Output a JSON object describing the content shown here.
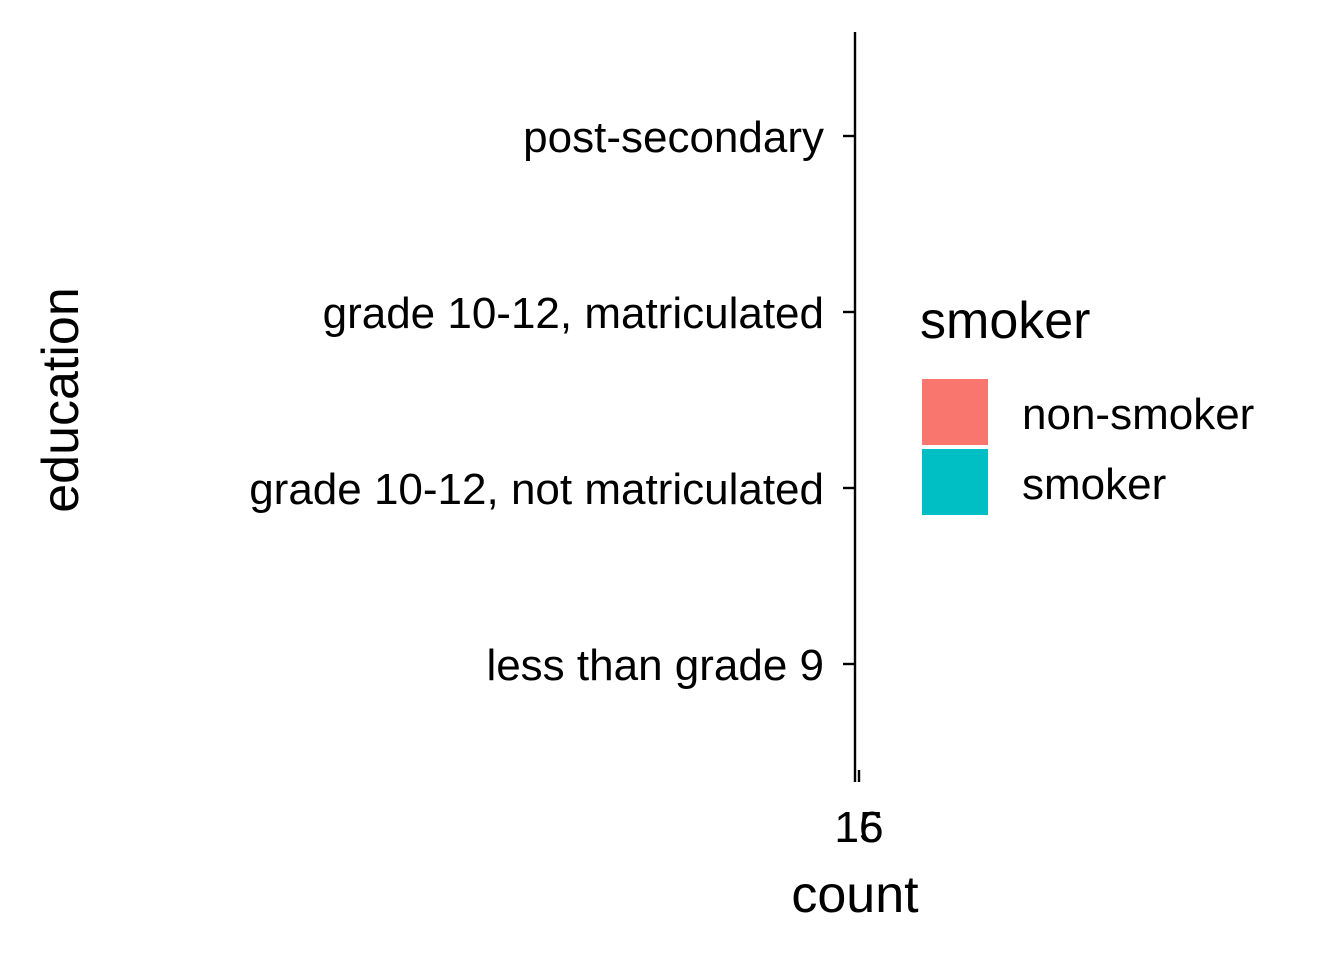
{
  "chart_data": {
    "type": "bar",
    "orientation": "horizontal",
    "categories": [
      "less than grade 9",
      "grade 10-12, not matriculated",
      "grade 10-12, matriculated",
      "post-secondary"
    ],
    "series": [
      {
        "name": "non-smoker",
        "color": "#F8766D",
        "values": [
          0,
          0,
          0,
          0
        ]
      },
      {
        "name": "smoker",
        "color": "#00BFC4",
        "values": [
          0,
          0,
          0,
          0
        ]
      }
    ],
    "xlabel": "count",
    "ylabel": "education",
    "x_ticks": [
      "15",
      "16"
    ],
    "grid": false,
    "legend": {
      "title": "smoker",
      "position": "right",
      "items": [
        {
          "label": "non-smoker",
          "color": "#F8766D"
        },
        {
          "label": "smoker",
          "color": "#00BFC4"
        }
      ]
    }
  }
}
